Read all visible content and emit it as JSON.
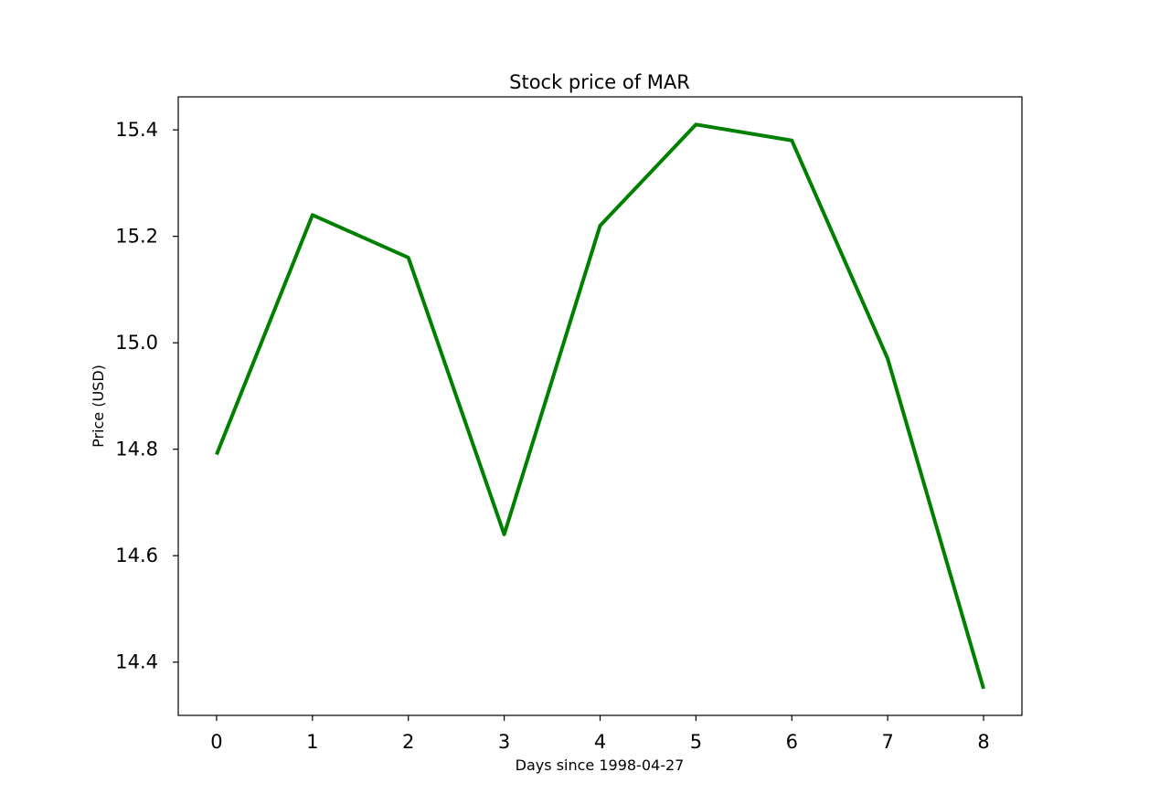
{
  "chart_data": {
    "type": "line",
    "title": "Stock price of MAR",
    "xlabel": "Days since 1998-04-27",
    "ylabel": "Price (USD)",
    "x": [
      0,
      1,
      2,
      3,
      4,
      5,
      6,
      7,
      8
    ],
    "series": [
      {
        "values": [
          14.79,
          15.24,
          15.16,
          14.64,
          15.22,
          15.41,
          15.38,
          14.97,
          14.35
        ],
        "color": "#008000"
      }
    ],
    "xticks": [
      "0",
      "1",
      "2",
      "3",
      "4",
      "5",
      "6",
      "7",
      "8"
    ],
    "yticks": [
      "14.4",
      "14.6",
      "14.8",
      "15.0",
      "15.2",
      "15.4"
    ],
    "xlim": [
      -0.4,
      8.4
    ],
    "ylim": [
      14.3,
      15.462
    ],
    "grid": false,
    "legend": false
  }
}
